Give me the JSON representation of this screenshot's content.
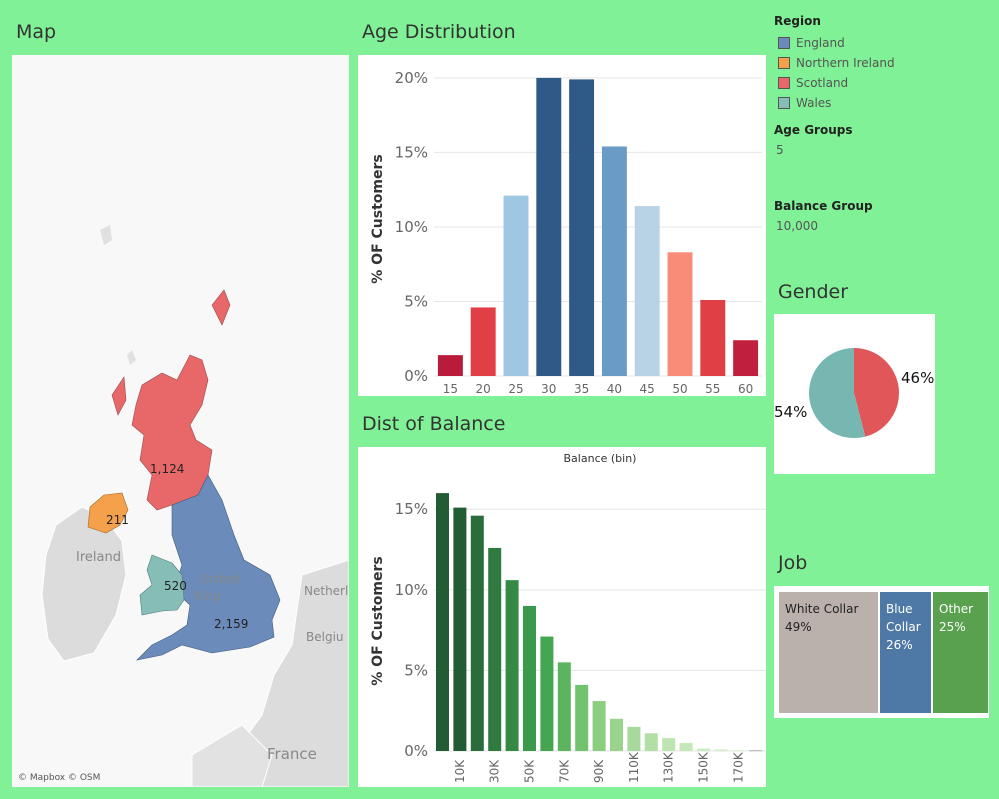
{
  "titles": {
    "map": "Map",
    "age": "Age Distribution",
    "balance": "Dist of  Balance",
    "gender": "Gender",
    "job": "Job"
  },
  "map": {
    "labels": {
      "scotland": "1,124",
      "northern_ireland": "211",
      "wales": "520",
      "england": "2,159",
      "ireland": "Ireland",
      "united_kingdom_1": "United",
      "united_kingdom_2": "King",
      "netherlands": "Netherl",
      "belgium": "Belgiu",
      "france": "France"
    },
    "attribution": "© Mapbox © OSM"
  },
  "legend": {
    "title": "Region",
    "items": [
      {
        "label": "England",
        "color": "#6b8cba"
      },
      {
        "label": "Northern Ireland",
        "color": "#f5a04a"
      },
      {
        "label": "Scotland",
        "color": "#e8686a"
      },
      {
        "label": "Wales",
        "color": "#86bdb6"
      }
    ]
  },
  "parameters": {
    "age_groups": {
      "label": "Age Groups",
      "value": "5"
    },
    "balance_group": {
      "label": "Balance Group",
      "value": "10,000"
    }
  },
  "chart_data": [
    {
      "type": "bar",
      "title": "Age Distribution",
      "ylabel": "% OF Customers",
      "categories": [
        "15",
        "20",
        "25",
        "30",
        "35",
        "40",
        "45",
        "50",
        "55",
        "60"
      ],
      "values": [
        1.4,
        4.6,
        12.1,
        20.0,
        19.9,
        15.4,
        11.4,
        8.3,
        5.1,
        2.4
      ],
      "colors": [
        "#b91c3a",
        "#e13f46",
        "#9fc6e3",
        "#2f5a87",
        "#2f5a87",
        "#6a9bc6",
        "#b8d2e6",
        "#f88c78",
        "#e13f46",
        "#c01f3e"
      ],
      "yticks": [
        "0%",
        "5%",
        "10%",
        "15%",
        "20%"
      ],
      "ylim": [
        0,
        21
      ]
    },
    {
      "type": "bar",
      "title": "Dist of  Balance",
      "subtitle": "Balance (bin)",
      "ylabel": "% OF Customers",
      "categories": [
        "0",
        "10K",
        "20K",
        "30K",
        "40K",
        "50K",
        "60K",
        "70K",
        "80K",
        "90K",
        "100K",
        "110K",
        "120K",
        "130K",
        "140K",
        "150K",
        "160K",
        "170K",
        "180K"
      ],
      "tick_labels": [
        "10K",
        "30K",
        "50K",
        "70K",
        "90K",
        "110K",
        "130K",
        "150K",
        "170K"
      ],
      "values": [
        16.0,
        15.1,
        14.6,
        12.6,
        10.6,
        9.0,
        7.1,
        5.5,
        4.1,
        3.1,
        2.0,
        1.5,
        1.1,
        0.8,
        0.5,
        0.15,
        0.1,
        0.05,
        0.05
      ],
      "colors": [
        "#235c33",
        "#235c33",
        "#2a6c3a",
        "#2f7a3f",
        "#348a45",
        "#3a994a",
        "#44a650",
        "#5ab55e",
        "#72c36f",
        "#8bce80",
        "#99d38e",
        "#a6d99b",
        "#b2dfa6",
        "#bde4b1",
        "#c5e8b9",
        "#cdebc2",
        "#d4eec9",
        "#d9f0cf",
        "#b0b0b0"
      ],
      "yticks": [
        "0%",
        "5%",
        "10%",
        "15%"
      ],
      "ylim": [
        0,
        17
      ]
    },
    {
      "type": "pie",
      "title": "Gender",
      "labels": [
        "46%",
        "54%"
      ],
      "values": [
        46,
        54
      ],
      "colors": [
        "#e15759",
        "#76b7b2"
      ]
    }
  ],
  "job": {
    "cells": [
      {
        "label": "White Collar",
        "pct": "49%",
        "color": "#bab0ac",
        "text_color": "#222"
      },
      {
        "label": "Blue Collar",
        "pct": "26%",
        "color": "#4e79a7",
        "text_color": "#fff"
      },
      {
        "label": "Other",
        "pct": "25%",
        "color": "#59a14f",
        "text_color": "#fff"
      }
    ]
  }
}
